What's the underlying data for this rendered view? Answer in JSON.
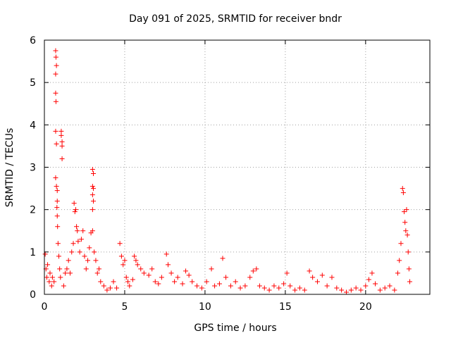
{
  "chart_data": {
    "type": "scatter",
    "title": "Day 091 of 2025, SRMTID for receiver bndr",
    "xlabel": "GPS time / hours",
    "ylabel": "SRMTID / TECUs",
    "xlim": [
      0,
      24
    ],
    "ylim": [
      0,
      6
    ],
    "xticks": [
      0,
      5,
      10,
      15,
      20
    ],
    "yticks": [
      0,
      1,
      2,
      3,
      4,
      5,
      6
    ],
    "xtick_labels": [
      "0",
      "5",
      "10",
      "15",
      "20"
    ],
    "ytick_labels": [
      "0",
      "1",
      "2",
      "3",
      "4",
      "5",
      "6"
    ],
    "grid": true,
    "marker": "+",
    "color": "#ff0000",
    "series": [
      {
        "name": "SRMTID",
        "points": [
          [
            0.05,
            0.95
          ],
          [
            0.1,
            0.6
          ],
          [
            0.15,
            0.4
          ],
          [
            0.2,
            0.7
          ],
          [
            0.3,
            0.3
          ],
          [
            0.35,
            0.5
          ],
          [
            0.45,
            0.2
          ],
          [
            0.5,
            0.4
          ],
          [
            0.6,
            0.3
          ],
          [
            0.7,
            5.75
          ],
          [
            0.72,
            5.6
          ],
          [
            0.75,
            5.4
          ],
          [
            0.7,
            5.2
          ],
          [
            0.7,
            4.75
          ],
          [
            0.72,
            4.55
          ],
          [
            0.7,
            3.85
          ],
          [
            0.75,
            3.55
          ],
          [
            0.7,
            2.75
          ],
          [
            0.75,
            2.55
          ],
          [
            0.8,
            2.45
          ],
          [
            0.8,
            2.2
          ],
          [
            0.78,
            2.05
          ],
          [
            0.8,
            1.85
          ],
          [
            0.82,
            1.6
          ],
          [
            0.85,
            1.2
          ],
          [
            0.9,
            0.9
          ],
          [
            0.95,
            0.6
          ],
          [
            1.0,
            0.4
          ],
          [
            1.05,
            3.85
          ],
          [
            1.05,
            3.75
          ],
          [
            1.1,
            3.6
          ],
          [
            1.1,
            3.5
          ],
          [
            1.1,
            3.2
          ],
          [
            1.2,
            0.2
          ],
          [
            1.3,
            0.5
          ],
          [
            1.4,
            0.6
          ],
          [
            1.5,
            0.8
          ],
          [
            1.6,
            0.5
          ],
          [
            1.7,
            1.0
          ],
          [
            1.8,
            1.2
          ],
          [
            1.85,
            2.15
          ],
          [
            1.9,
            1.95
          ],
          [
            1.95,
            2.0
          ],
          [
            2.0,
            1.6
          ],
          [
            2.05,
            1.5
          ],
          [
            2.1,
            1.25
          ],
          [
            2.2,
            1.0
          ],
          [
            2.3,
            1.3
          ],
          [
            2.4,
            1.5
          ],
          [
            2.5,
            0.9
          ],
          [
            2.6,
            0.6
          ],
          [
            2.7,
            0.8
          ],
          [
            2.8,
            1.1
          ],
          [
            2.9,
            1.45
          ],
          [
            3.0,
            1.5
          ],
          [
            3.0,
            2.95
          ],
          [
            3.05,
            2.85
          ],
          [
            3.0,
            2.55
          ],
          [
            3.05,
            2.5
          ],
          [
            3.0,
            2.35
          ],
          [
            3.05,
            2.2
          ],
          [
            3.0,
            2.0
          ],
          [
            3.1,
            1.0
          ],
          [
            3.2,
            0.8
          ],
          [
            3.3,
            0.5
          ],
          [
            3.4,
            0.6
          ],
          [
            3.5,
            0.3
          ],
          [
            3.7,
            0.2
          ],
          [
            3.9,
            0.1
          ],
          [
            4.1,
            0.15
          ],
          [
            4.3,
            0.3
          ],
          [
            4.5,
            0.15
          ],
          [
            4.7,
            1.2
          ],
          [
            4.8,
            0.9
          ],
          [
            4.9,
            0.7
          ],
          [
            5.0,
            0.8
          ],
          [
            5.1,
            0.4
          ],
          [
            5.2,
            0.3
          ],
          [
            5.3,
            0.2
          ],
          [
            5.5,
            0.35
          ],
          [
            5.6,
            0.9
          ],
          [
            5.7,
            0.8
          ],
          [
            5.8,
            0.7
          ],
          [
            6.0,
            0.6
          ],
          [
            6.2,
            0.5
          ],
          [
            6.5,
            0.45
          ],
          [
            6.7,
            0.6
          ],
          [
            6.9,
            0.3
          ],
          [
            7.1,
            0.25
          ],
          [
            7.3,
            0.4
          ],
          [
            7.6,
            0.95
          ],
          [
            7.7,
            0.7
          ],
          [
            7.9,
            0.5
          ],
          [
            8.1,
            0.3
          ],
          [
            8.3,
            0.4
          ],
          [
            8.6,
            0.25
          ],
          [
            8.8,
            0.55
          ],
          [
            9.0,
            0.45
          ],
          [
            9.2,
            0.3
          ],
          [
            9.5,
            0.2
          ],
          [
            9.8,
            0.15
          ],
          [
            10.1,
            0.3
          ],
          [
            10.4,
            0.6
          ],
          [
            10.6,
            0.2
          ],
          [
            10.9,
            0.25
          ],
          [
            11.1,
            0.85
          ],
          [
            11.3,
            0.4
          ],
          [
            11.6,
            0.2
          ],
          [
            11.9,
            0.3
          ],
          [
            12.2,
            0.15
          ],
          [
            12.5,
            0.2
          ],
          [
            12.8,
            0.4
          ],
          [
            13.0,
            0.55
          ],
          [
            13.2,
            0.6
          ],
          [
            13.4,
            0.2
          ],
          [
            13.7,
            0.15
          ],
          [
            14.0,
            0.1
          ],
          [
            14.3,
            0.2
          ],
          [
            14.6,
            0.15
          ],
          [
            14.9,
            0.25
          ],
          [
            15.1,
            0.5
          ],
          [
            15.3,
            0.2
          ],
          [
            15.6,
            0.1
          ],
          [
            15.9,
            0.15
          ],
          [
            16.2,
            0.1
          ],
          [
            16.5,
            0.55
          ],
          [
            16.7,
            0.4
          ],
          [
            17.0,
            0.3
          ],
          [
            17.3,
            0.45
          ],
          [
            17.6,
            0.2
          ],
          [
            17.9,
            0.4
          ],
          [
            18.2,
            0.15
          ],
          [
            18.5,
            0.1
          ],
          [
            18.8,
            0.05
          ],
          [
            19.1,
            0.1
          ],
          [
            19.4,
            0.15
          ],
          [
            19.7,
            0.1
          ],
          [
            20.0,
            0.2
          ],
          [
            20.2,
            0.35
          ],
          [
            20.4,
            0.5
          ],
          [
            20.6,
            0.25
          ],
          [
            20.9,
            0.1
          ],
          [
            21.2,
            0.15
          ],
          [
            21.5,
            0.2
          ],
          [
            21.8,
            0.1
          ],
          [
            22.0,
            0.5
          ],
          [
            22.1,
            0.8
          ],
          [
            22.2,
            1.2
          ],
          [
            22.3,
            2.5
          ],
          [
            22.35,
            2.4
          ],
          [
            22.4,
            1.95
          ],
          [
            22.45,
            1.7
          ],
          [
            22.5,
            1.5
          ],
          [
            22.55,
            2.0
          ],
          [
            22.6,
            1.4
          ],
          [
            22.65,
            1.0
          ],
          [
            22.7,
            0.6
          ],
          [
            22.75,
            0.3
          ]
        ]
      }
    ]
  }
}
